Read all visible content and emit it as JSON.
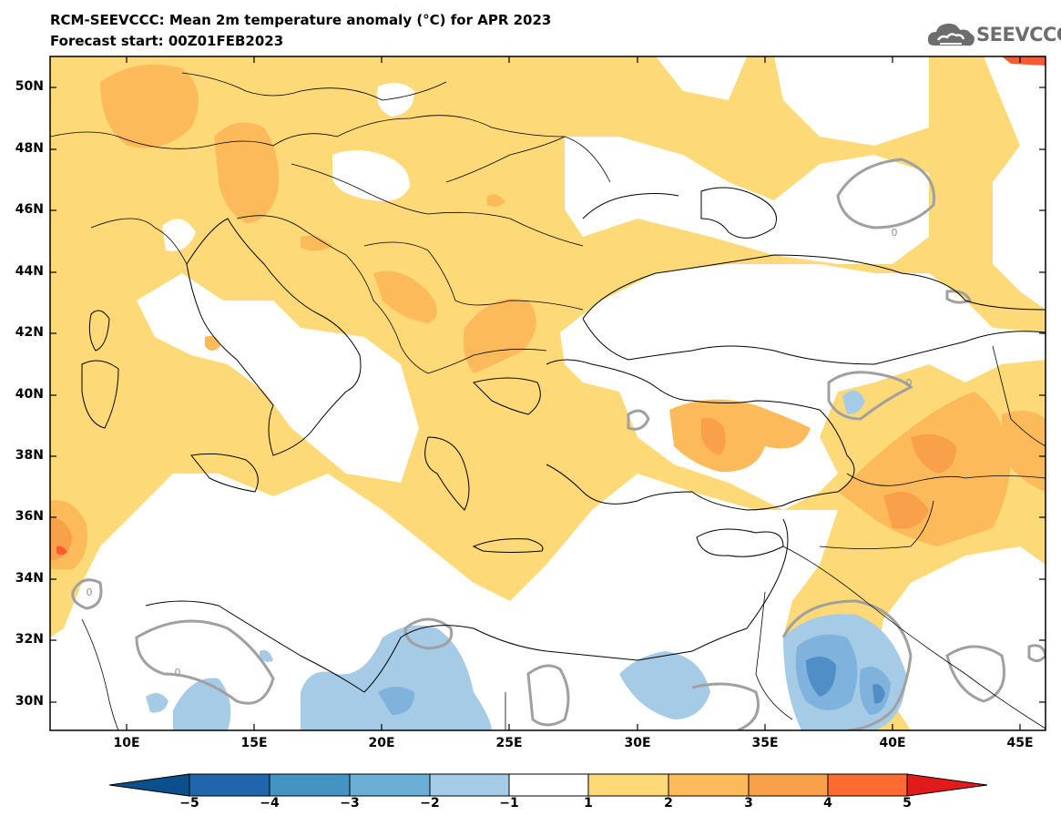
{
  "title": "RCM-SEEVCCC: Mean 2m temperature anomaly (°C) for APR 2023",
  "subtitle": "Forecast start: 00Z01FEB2023",
  "logo": {
    "text": "SEEVCCC",
    "icon": "cloud-icon"
  },
  "map": {
    "lat_labels": [
      "50N",
      "48N",
      "46N",
      "44N",
      "42N",
      "40N",
      "38N",
      "36N",
      "34N",
      "32N",
      "30N"
    ],
    "lon_labels": [
      "10E",
      "15E",
      "20E",
      "25E",
      "30E",
      "35E",
      "40E",
      "45E"
    ],
    "contour_labels": [
      "0",
      "0",
      "0",
      "0"
    ],
    "palette": {
      "t_m5": "#0b4f8c",
      "t_m4": "#2f6fae",
      "t_m3": "#5a95cc",
      "t_m2": "#7fb2dc",
      "t_m1": "#a6cbe7",
      "t_0": "#ffffff",
      "t_1": "#fed977",
      "t_2": "#fdba5b",
      "t_3": "#f9a04a",
      "t_4": "#ff5a30",
      "t_5": "#e31a1c"
    }
  },
  "colorbar": {
    "labels": [
      "−5",
      "−4",
      "−3",
      "−2",
      "−1",
      "1",
      "2",
      "3",
      "4",
      "5"
    ],
    "colors": [
      "#0b4f8c",
      "#2166ac",
      "#4393c3",
      "#6baed6",
      "#a6cbe7",
      "#ffffff",
      "#fed977",
      "#fdba5b",
      "#f9a04a",
      "#ff6a33",
      "#e31a1c",
      "#d01010"
    ]
  }
}
